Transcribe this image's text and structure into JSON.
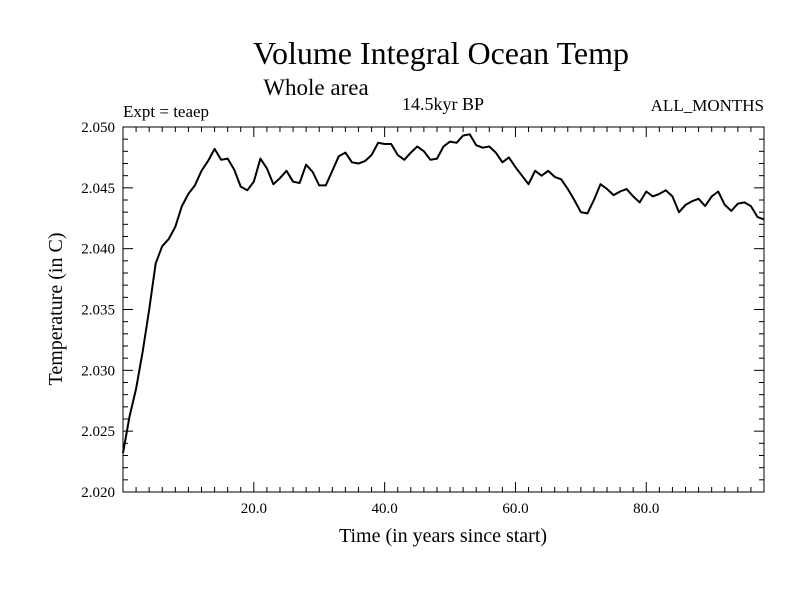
{
  "chart_data": {
    "type": "line",
    "title": "Volume Integral Ocean Temp",
    "subtitle": "Whole area",
    "period_label": "14.5kyr BP",
    "expt_label": "Expt = teaep",
    "months_label": "ALL_MONTHS",
    "xlabel": "Time (in years since start)",
    "ylabel": "Temperature (in C)",
    "xlim": [
      0,
      98
    ],
    "ylim": [
      2.02,
      2.05
    ],
    "x_ticks": [
      20,
      40,
      60,
      80
    ],
    "x_tick_labels": [
      "20.0",
      "40.0",
      "60.0",
      "80.0"
    ],
    "y_ticks": [
      2.02,
      2.025,
      2.03,
      2.035,
      2.04,
      2.045,
      2.05
    ],
    "y_tick_labels": [
      "2.020",
      "2.025",
      "2.030",
      "2.035",
      "2.040",
      "2.045",
      "2.050"
    ],
    "grid": false,
    "series": [
      {
        "name": "Volume Integral Ocean Temp",
        "x": [
          0,
          1,
          2,
          3,
          4,
          5,
          6,
          7,
          8,
          9,
          10,
          11,
          12,
          13,
          14,
          15,
          16,
          17,
          18,
          19,
          20,
          21,
          22,
          23,
          24,
          25,
          26,
          27,
          28,
          29,
          30,
          31,
          32,
          33,
          34,
          35,
          36,
          37,
          38,
          39,
          40,
          41,
          42,
          43,
          44,
          45,
          46,
          47,
          48,
          49,
          50,
          51,
          52,
          53,
          54,
          55,
          56,
          57,
          58,
          59,
          60,
          61,
          62,
          63,
          64,
          65,
          66,
          67,
          68,
          69,
          70,
          71,
          72,
          73,
          74,
          75,
          76,
          77,
          78,
          79,
          80,
          81,
          82,
          83,
          84,
          85,
          86,
          87,
          88,
          89,
          90,
          91,
          92,
          93,
          94,
          95,
          96,
          97,
          98
        ],
        "values": [
          2.0232,
          2.0262,
          2.0285,
          2.0315,
          2.035,
          2.0388,
          2.0402,
          2.0408,
          2.0418,
          2.0435,
          2.0445,
          2.0452,
          2.0464,
          2.0472,
          2.0482,
          2.0473,
          2.0474,
          2.0465,
          2.0451,
          2.0448,
          2.0455,
          2.0474,
          2.0466,
          2.0453,
          2.0458,
          2.0464,
          2.0455,
          2.0454,
          2.0469,
          2.0463,
          2.0452,
          2.0452,
          2.0464,
          2.0476,
          2.0479,
          2.0471,
          2.047,
          2.0472,
          2.0477,
          2.0487,
          2.0486,
          2.0486,
          2.0477,
          2.0473,
          2.0479,
          2.0484,
          2.048,
          2.0473,
          2.0474,
          2.0484,
          2.0488,
          2.0487,
          2.0493,
          2.0494,
          2.0485,
          2.0483,
          2.0484,
          2.0479,
          2.0471,
          2.0475,
          2.0467,
          2.046,
          2.0453,
          2.0464,
          2.046,
          2.0464,
          2.0459,
          2.0457,
          2.0449,
          2.044,
          2.043,
          2.0429,
          2.044,
          2.0453,
          2.0449,
          2.0444,
          2.0447,
          2.0449,
          2.0443,
          2.0438,
          2.0447,
          2.0443,
          2.0445,
          2.0448,
          2.0443,
          2.043,
          2.0436,
          2.0439,
          2.0441,
          2.0435,
          2.0443,
          2.0447,
          2.0436,
          2.0431,
          2.0437,
          2.0438,
          2.0435,
          2.0426,
          2.0424
        ]
      }
    ]
  },
  "colors": {
    "line": "#000000",
    "axes": "#000000",
    "background": "#ffffff"
  }
}
